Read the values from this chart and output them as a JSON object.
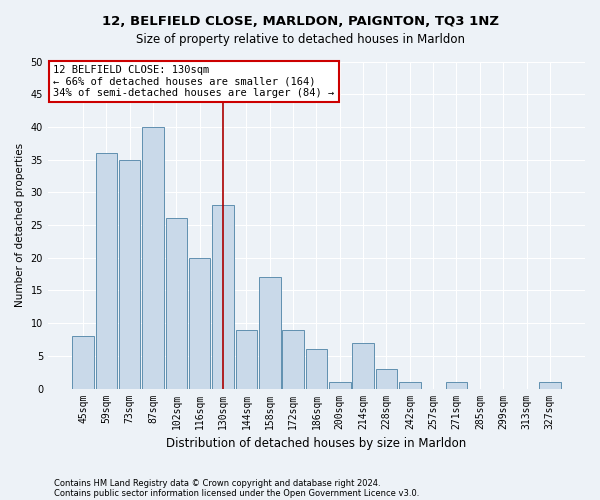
{
  "title1": "12, BELFIELD CLOSE, MARLDON, PAIGNTON, TQ3 1NZ",
  "title2": "Size of property relative to detached houses in Marldon",
  "xlabel": "Distribution of detached houses by size in Marldon",
  "ylabel": "Number of detached properties",
  "categories": [
    "45sqm",
    "59sqm",
    "73sqm",
    "87sqm",
    "102sqm",
    "116sqm",
    "130sqm",
    "144sqm",
    "158sqm",
    "172sqm",
    "186sqm",
    "200sqm",
    "214sqm",
    "228sqm",
    "242sqm",
    "257sqm",
    "271sqm",
    "285sqm",
    "299sqm",
    "313sqm",
    "327sqm"
  ],
  "values": [
    8,
    36,
    35,
    40,
    26,
    20,
    28,
    9,
    17,
    9,
    6,
    1,
    7,
    3,
    1,
    0,
    1,
    0,
    0,
    0,
    1
  ],
  "highlight_index": 6,
  "bar_color": "#c9d9e9",
  "bar_edge_color": "#6090b0",
  "highlight_line_color": "#aa0000",
  "annotation_line1": "12 BELFIELD CLOSE: 130sqm",
  "annotation_line2": "← 66% of detached houses are smaller (164)",
  "annotation_line3": "34% of semi-detached houses are larger (84) →",
  "annotation_box_color": "#ffffff",
  "annotation_box_edge": "#cc0000",
  "ylim": [
    0,
    50
  ],
  "yticks": [
    0,
    5,
    10,
    15,
    20,
    25,
    30,
    35,
    40,
    45,
    50
  ],
  "footer1": "Contains HM Land Registry data © Crown copyright and database right 2024.",
  "footer2": "Contains public sector information licensed under the Open Government Licence v3.0.",
  "bg_color": "#edf2f7",
  "grid_color": "#ffffff",
  "title1_fontsize": 9.5,
  "title2_fontsize": 8.5,
  "xlabel_fontsize": 8.5,
  "ylabel_fontsize": 7.5,
  "tick_fontsize": 7,
  "ann_fontsize": 7.5,
  "footer_fontsize": 6
}
